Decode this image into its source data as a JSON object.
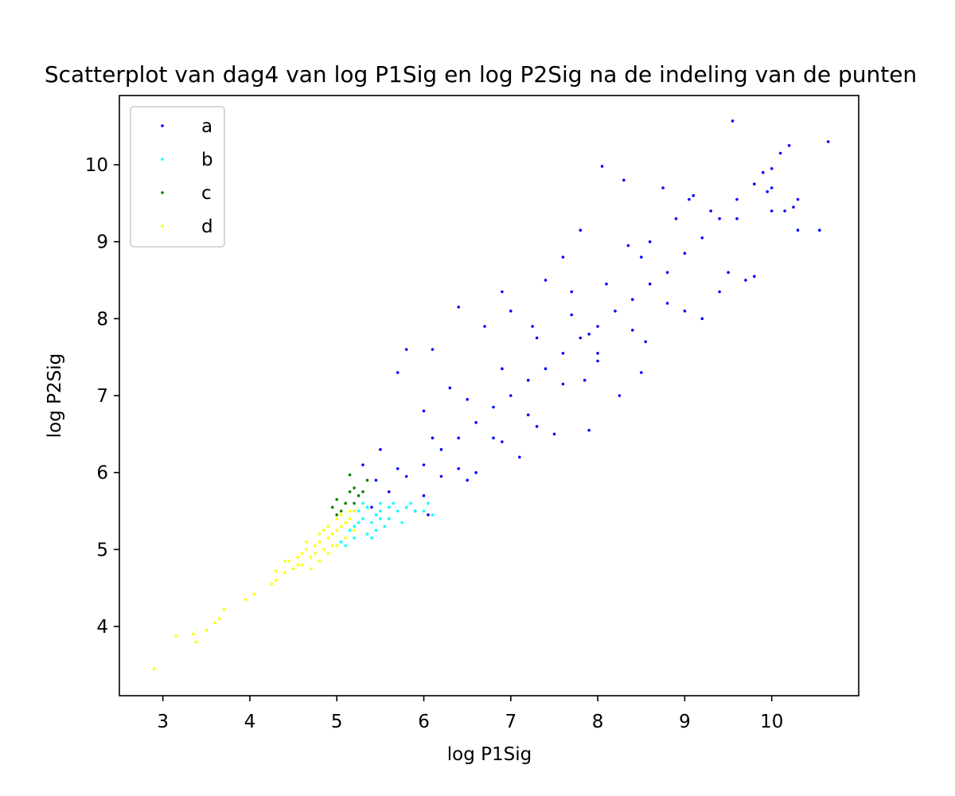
{
  "chart_data": {
    "type": "scatter",
    "title": "Scatterplot van dag4 van log P1Sig en log P2Sig na de indeling van de punten",
    "xlabel": "log P1Sig",
    "ylabel": "log P2Sig",
    "xlim": [
      2.5,
      11.0
    ],
    "ylim": [
      3.1,
      10.9
    ],
    "xticks": [
      3,
      4,
      5,
      6,
      7,
      8,
      9,
      10
    ],
    "yticks": [
      4,
      5,
      6,
      7,
      8,
      9,
      10
    ],
    "grid": false,
    "legend_position": "top-left",
    "series": [
      {
        "name": "a",
        "color": "#0000ff",
        "points": [
          [
            5.4,
            5.55
          ],
          [
            5.6,
            5.75
          ],
          [
            5.8,
            5.95
          ],
          [
            6.0,
            6.1
          ],
          [
            6.2,
            6.3
          ],
          [
            6.4,
            6.45
          ],
          [
            6.6,
            6.65
          ],
          [
            6.8,
            6.85
          ],
          [
            7.0,
            7.0
          ],
          [
            7.2,
            7.2
          ],
          [
            7.4,
            7.35
          ],
          [
            7.6,
            7.55
          ],
          [
            7.8,
            7.75
          ],
          [
            8.0,
            7.9
          ],
          [
            8.2,
            8.1
          ],
          [
            8.4,
            8.25
          ],
          [
            8.6,
            8.45
          ],
          [
            8.8,
            8.6
          ],
          [
            9.0,
            8.85
          ],
          [
            9.2,
            9.05
          ],
          [
            9.4,
            9.3
          ],
          [
            9.6,
            9.55
          ],
          [
            9.8,
            9.75
          ],
          [
            10.0,
            9.95
          ],
          [
            5.7,
            6.05
          ],
          [
            6.1,
            6.45
          ],
          [
            6.5,
            6.95
          ],
          [
            6.9,
            7.35
          ],
          [
            7.3,
            7.75
          ],
          [
            7.7,
            8.05
          ],
          [
            8.1,
            8.45
          ],
          [
            8.5,
            8.8
          ],
          [
            6.0,
            5.7
          ],
          [
            6.4,
            6.05
          ],
          [
            6.8,
            6.45
          ],
          [
            7.2,
            6.75
          ],
          [
            7.6,
            7.15
          ],
          [
            8.0,
            7.45
          ],
          [
            8.4,
            7.85
          ],
          [
            8.8,
            8.2
          ],
          [
            5.7,
            7.3
          ],
          [
            5.8,
            7.6
          ],
          [
            6.1,
            7.6
          ],
          [
            6.4,
            8.15
          ],
          [
            6.9,
            8.35
          ],
          [
            7.4,
            8.5
          ],
          [
            7.7,
            8.35
          ],
          [
            7.8,
            9.15
          ],
          [
            8.05,
            9.98
          ],
          [
            8.3,
            9.8
          ],
          [
            8.75,
            9.7
          ],
          [
            9.55,
            10.57
          ],
          [
            10.65,
            10.3
          ],
          [
            10.2,
            10.25
          ],
          [
            10.1,
            10.15
          ],
          [
            9.9,
            9.9
          ],
          [
            10.0,
            9.7
          ],
          [
            10.25,
            9.45
          ],
          [
            10.3,
            9.15
          ],
          [
            10.55,
            9.15
          ],
          [
            10.15,
            9.4
          ],
          [
            9.95,
            9.65
          ],
          [
            9.5,
            8.6
          ],
          [
            9.7,
            8.5
          ],
          [
            9.8,
            8.55
          ],
          [
            9.4,
            8.35
          ],
          [
            9.2,
            8.0
          ],
          [
            9.0,
            8.1
          ],
          [
            8.55,
            7.7
          ],
          [
            8.0,
            7.55
          ],
          [
            7.9,
            6.55
          ],
          [
            7.3,
            6.6
          ],
          [
            6.9,
            6.4
          ],
          [
            6.2,
            5.95
          ],
          [
            5.9,
            5.5
          ],
          [
            6.05,
            5.45
          ],
          [
            7.85,
            7.2
          ],
          [
            8.5,
            7.3
          ],
          [
            8.25,
            7.0
          ],
          [
            7.1,
            6.2
          ],
          [
            6.5,
            5.9
          ],
          [
            7.5,
            6.5
          ],
          [
            8.35,
            8.95
          ],
          [
            8.6,
            9.0
          ],
          [
            9.05,
            9.55
          ],
          [
            9.3,
            9.4
          ],
          [
            9.1,
            9.6
          ],
          [
            6.3,
            7.1
          ],
          [
            6.0,
            6.8
          ],
          [
            5.5,
            6.3
          ],
          [
            5.3,
            6.1
          ],
          [
            5.45,
            5.9
          ],
          [
            6.7,
            7.9
          ],
          [
            7.0,
            8.1
          ],
          [
            7.6,
            8.8
          ],
          [
            7.25,
            7.9
          ],
          [
            6.6,
            6.0
          ],
          [
            7.9,
            7.8
          ],
          [
            8.9,
            9.3
          ],
          [
            9.6,
            9.3
          ],
          [
            10.0,
            9.4
          ],
          [
            10.3,
            9.55
          ]
        ]
      },
      {
        "name": "b",
        "color": "#00ffff",
        "points": [
          [
            5.2,
            5.3
          ],
          [
            5.3,
            5.4
          ],
          [
            5.4,
            5.35
          ],
          [
            5.5,
            5.5
          ],
          [
            5.35,
            5.2
          ],
          [
            5.45,
            5.45
          ],
          [
            5.6,
            5.55
          ],
          [
            5.55,
            5.3
          ],
          [
            5.25,
            5.5
          ],
          [
            5.15,
            5.25
          ],
          [
            5.7,
            5.5
          ],
          [
            5.8,
            5.55
          ],
          [
            5.9,
            5.5
          ],
          [
            6.0,
            5.5
          ],
          [
            6.1,
            5.45
          ],
          [
            5.65,
            5.6
          ],
          [
            5.5,
            5.6
          ],
          [
            5.3,
            5.6
          ],
          [
            5.4,
            5.15
          ],
          [
            5.2,
            5.15
          ],
          [
            5.1,
            5.05
          ],
          [
            5.05,
            5.1
          ],
          [
            5.35,
            5.55
          ],
          [
            5.6,
            5.4
          ],
          [
            5.75,
            5.35
          ],
          [
            5.45,
            5.25
          ],
          [
            5.25,
            5.35
          ],
          [
            5.5,
            5.4
          ],
          [
            5.85,
            5.6
          ],
          [
            6.05,
            5.6
          ]
        ]
      },
      {
        "name": "c",
        "color": "#007f00",
        "points": [
          [
            5.15,
            5.97
          ],
          [
            5.2,
            5.8
          ],
          [
            5.3,
            5.75
          ],
          [
            5.0,
            5.65
          ],
          [
            5.1,
            5.6
          ],
          [
            5.05,
            5.5
          ],
          [
            4.95,
            5.55
          ],
          [
            5.25,
            5.7
          ],
          [
            5.2,
            5.6
          ],
          [
            5.15,
            5.75
          ],
          [
            5.35,
            5.9
          ],
          [
            5.0,
            5.45
          ]
        ]
      },
      {
        "name": "d",
        "color": "#ffff00",
        "points": [
          [
            2.9,
            3.45
          ],
          [
            3.15,
            3.88
          ],
          [
            3.35,
            3.9
          ],
          [
            3.38,
            3.8
          ],
          [
            3.5,
            3.95
          ],
          [
            3.6,
            4.05
          ],
          [
            3.65,
            4.1
          ],
          [
            3.7,
            4.22
          ],
          [
            3.95,
            4.35
          ],
          [
            4.05,
            4.42
          ],
          [
            4.25,
            4.55
          ],
          [
            4.3,
            4.6
          ],
          [
            4.3,
            4.72
          ],
          [
            4.4,
            4.7
          ],
          [
            4.45,
            4.85
          ],
          [
            4.55,
            4.8
          ],
          [
            4.6,
            4.95
          ],
          [
            4.65,
            5.0
          ],
          [
            4.7,
            4.9
          ],
          [
            4.75,
            5.05
          ],
          [
            4.8,
            5.1
          ],
          [
            4.85,
            5.0
          ],
          [
            4.9,
            5.15
          ],
          [
            4.95,
            5.2
          ],
          [
            5.0,
            5.25
          ],
          [
            5.05,
            5.3
          ],
          [
            5.1,
            5.35
          ],
          [
            5.15,
            5.4
          ],
          [
            5.2,
            5.5
          ],
          [
            4.7,
            4.75
          ],
          [
            4.6,
            4.8
          ],
          [
            4.85,
            5.25
          ],
          [
            4.8,
            4.85
          ],
          [
            4.95,
            5.05
          ],
          [
            5.0,
            5.05
          ],
          [
            5.1,
            5.15
          ],
          [
            4.9,
            5.3
          ],
          [
            5.05,
            5.45
          ],
          [
            4.75,
            4.95
          ],
          [
            4.55,
            4.9
          ],
          [
            4.5,
            4.75
          ],
          [
            4.65,
            5.1
          ],
          [
            4.4,
            4.85
          ],
          [
            5.15,
            5.5
          ],
          [
            5.2,
            5.25
          ],
          [
            4.9,
            4.95
          ],
          [
            4.8,
            5.2
          ],
          [
            5.0,
            5.4
          ]
        ]
      }
    ]
  }
}
